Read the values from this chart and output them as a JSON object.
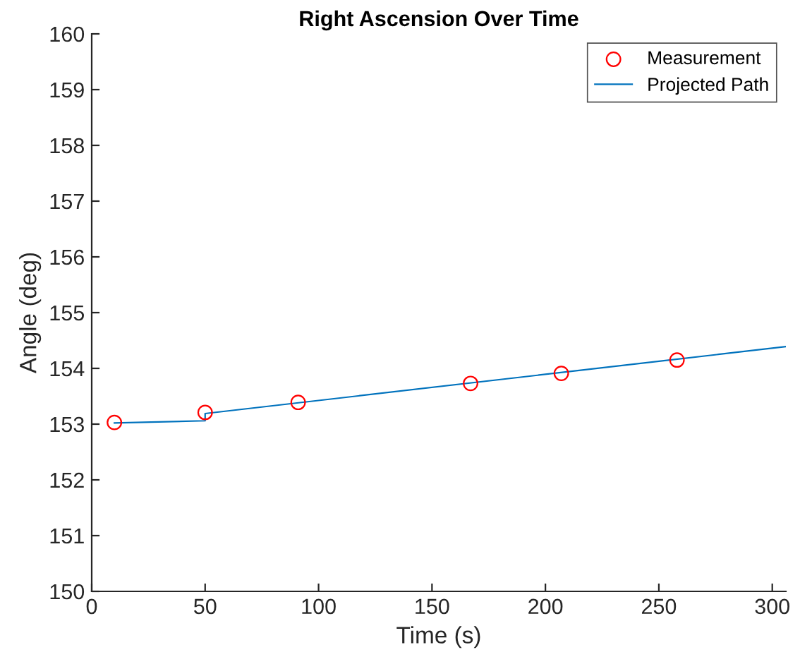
{
  "chart_data": {
    "type": "scatter",
    "title": "Right Ascension Over Time",
    "xlabel": "Time (s)",
    "ylabel": "Angle (deg)",
    "series": [
      {
        "name": "Measurement",
        "color": "#ff0000",
        "marker": "circle",
        "x": [
          10,
          50,
          91,
          167,
          207,
          258
        ],
        "values": [
          153.03,
          153.21,
          153.39,
          153.73,
          153.91,
          154.15
        ]
      },
      {
        "name": "Projected Path",
        "type": "line",
        "color": "#0072bd",
        "marker": "none",
        "line_style": "solid",
        "x": [
          10,
          50,
          50,
          306
        ],
        "values": [
          153.02,
          153.06,
          153.19,
          154.39
        ]
      }
    ],
    "xlim": [
      0,
      306
    ],
    "xticks": [
      0,
      50,
      100,
      150,
      200,
      250,
      300
    ],
    "ylim": [
      150,
      160
    ],
    "yticks": [
      150,
      151,
      152,
      153,
      154,
      155,
      156,
      157,
      158,
      159,
      160
    ],
    "grid": false,
    "legend": "top right"
  }
}
